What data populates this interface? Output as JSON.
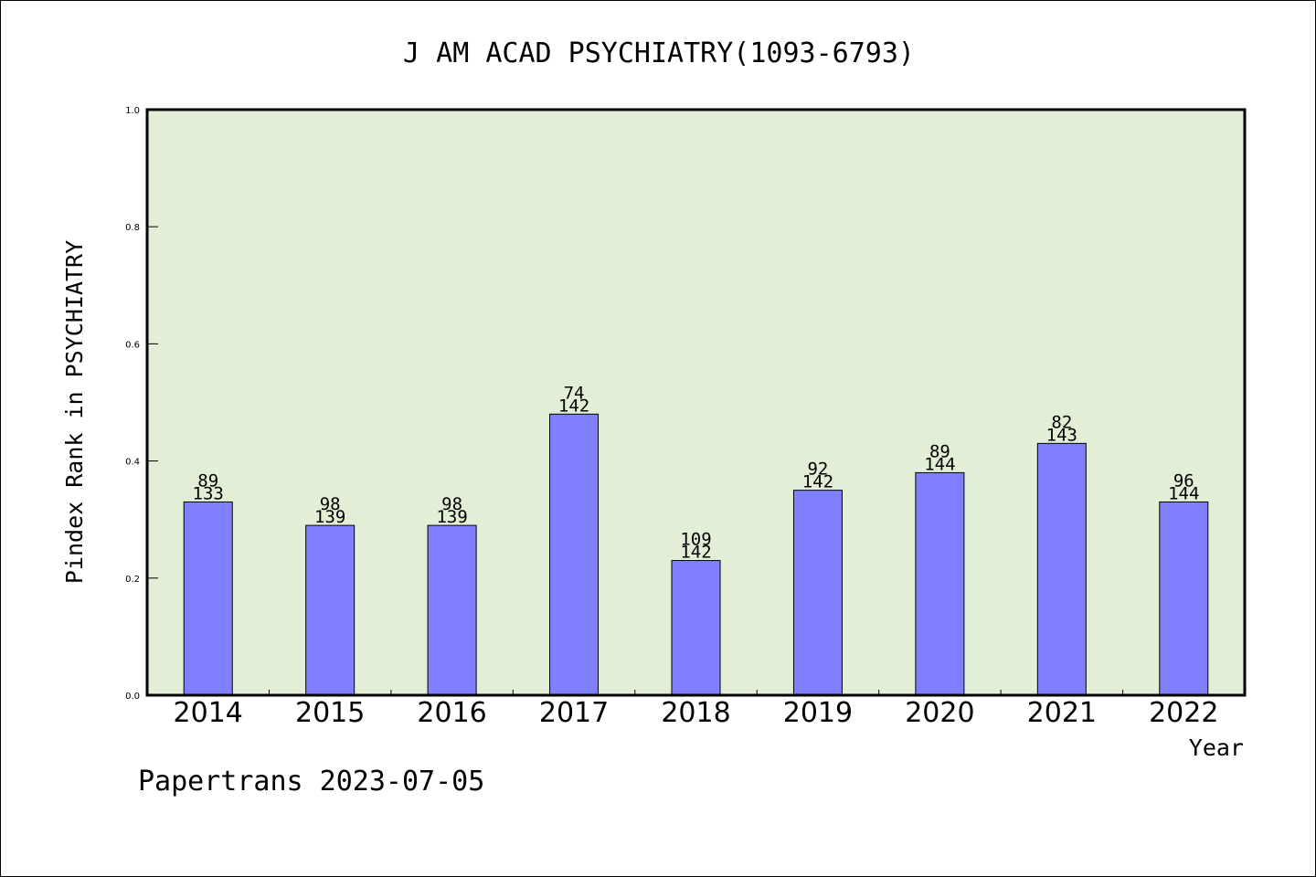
{
  "chart_data": {
    "type": "bar",
    "title": "J AM ACAD PSYCHIATRY(1093-6793)",
    "xlabel": "Year",
    "ylabel": "Pindex Rank in PSYCHIATRY",
    "ylim": [
      0,
      1.0
    ],
    "yticks": [
      "0.0",
      "0.2",
      "0.4",
      "0.6",
      "0.8",
      "1.0"
    ],
    "categories": [
      "2014",
      "2015",
      "2016",
      "2017",
      "2018",
      "2019",
      "2020",
      "2021",
      "2022"
    ],
    "values": [
      0.33,
      0.29,
      0.29,
      0.48,
      0.23,
      0.35,
      0.38,
      0.43,
      0.33
    ],
    "rank_labels": [
      "89",
      "98",
      "98",
      "74",
      "109",
      "92",
      "89",
      "82",
      "96"
    ],
    "total_labels": [
      "133",
      "139",
      "139",
      "142",
      "142",
      "142",
      "144",
      "143",
      "144"
    ],
    "grid": false,
    "colors": {
      "bar": "#8080ff",
      "plot_background": "#e2efd6",
      "axis": "#000000"
    }
  },
  "footer": {
    "credit": "Papertrans 2023-07-05"
  }
}
